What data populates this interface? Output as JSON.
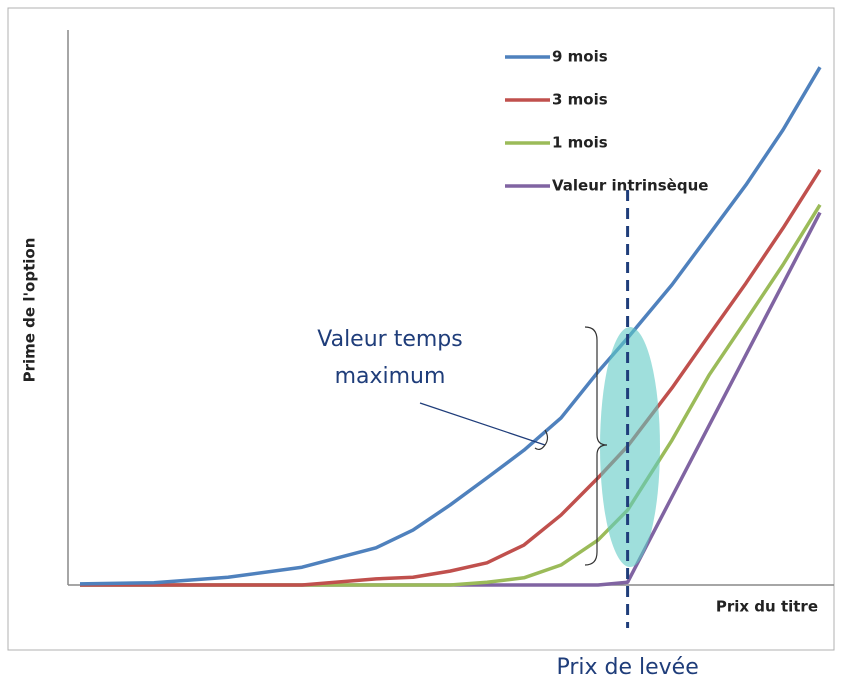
{
  "chart_data": {
    "type": "line",
    "y_label": "Prime de l'option",
    "x_label": "Prix du titre",
    "x": [
      0,
      10,
      20,
      30,
      40,
      45,
      50,
      55,
      60,
      65,
      70,
      74,
      80,
      85,
      90,
      95,
      100
    ],
    "xlim": [
      0,
      100
    ],
    "ylim": [
      0,
      100
    ],
    "legend": "top-right",
    "series": [
      {
        "name": "9 mois",
        "color": "#4f81bd",
        "values": [
          0.2,
          0.4,
          1.4,
          3.2,
          6.7,
          9.9,
          14.4,
          19.3,
          24.3,
          30.1,
          38.4,
          44.5,
          54.1,
          63.1,
          72.1,
          82.0,
          93.3
        ]
      },
      {
        "name": "3 mois",
        "color": "#c0504d",
        "values": [
          0,
          0,
          0,
          0,
          1.1,
          1.4,
          2.5,
          4.0,
          7.2,
          12.6,
          19.3,
          25.0,
          35.5,
          45.0,
          54.4,
          64.3,
          74.8
        ]
      },
      {
        "name": "1 mois",
        "color": "#9bbb59",
        "values": [
          0,
          0,
          0,
          0,
          0,
          0,
          0,
          0.5,
          1.3,
          3.6,
          8.1,
          13.5,
          26.1,
          37.8,
          47.7,
          57.7,
          68.5
        ]
      },
      {
        "name": "Valeur intrinsèque",
        "color": "#8064a2",
        "values": [
          0,
          0,
          0,
          0,
          0,
          0,
          0,
          0,
          0,
          0,
          0,
          0.5,
          15.9,
          28.7,
          41.5,
          54.3,
          67.1
        ]
      }
    ],
    "strike": 74,
    "strike_label": "Prix de levée",
    "annotation_lines": [
      "Valeur temps",
      "maximum"
    ]
  }
}
